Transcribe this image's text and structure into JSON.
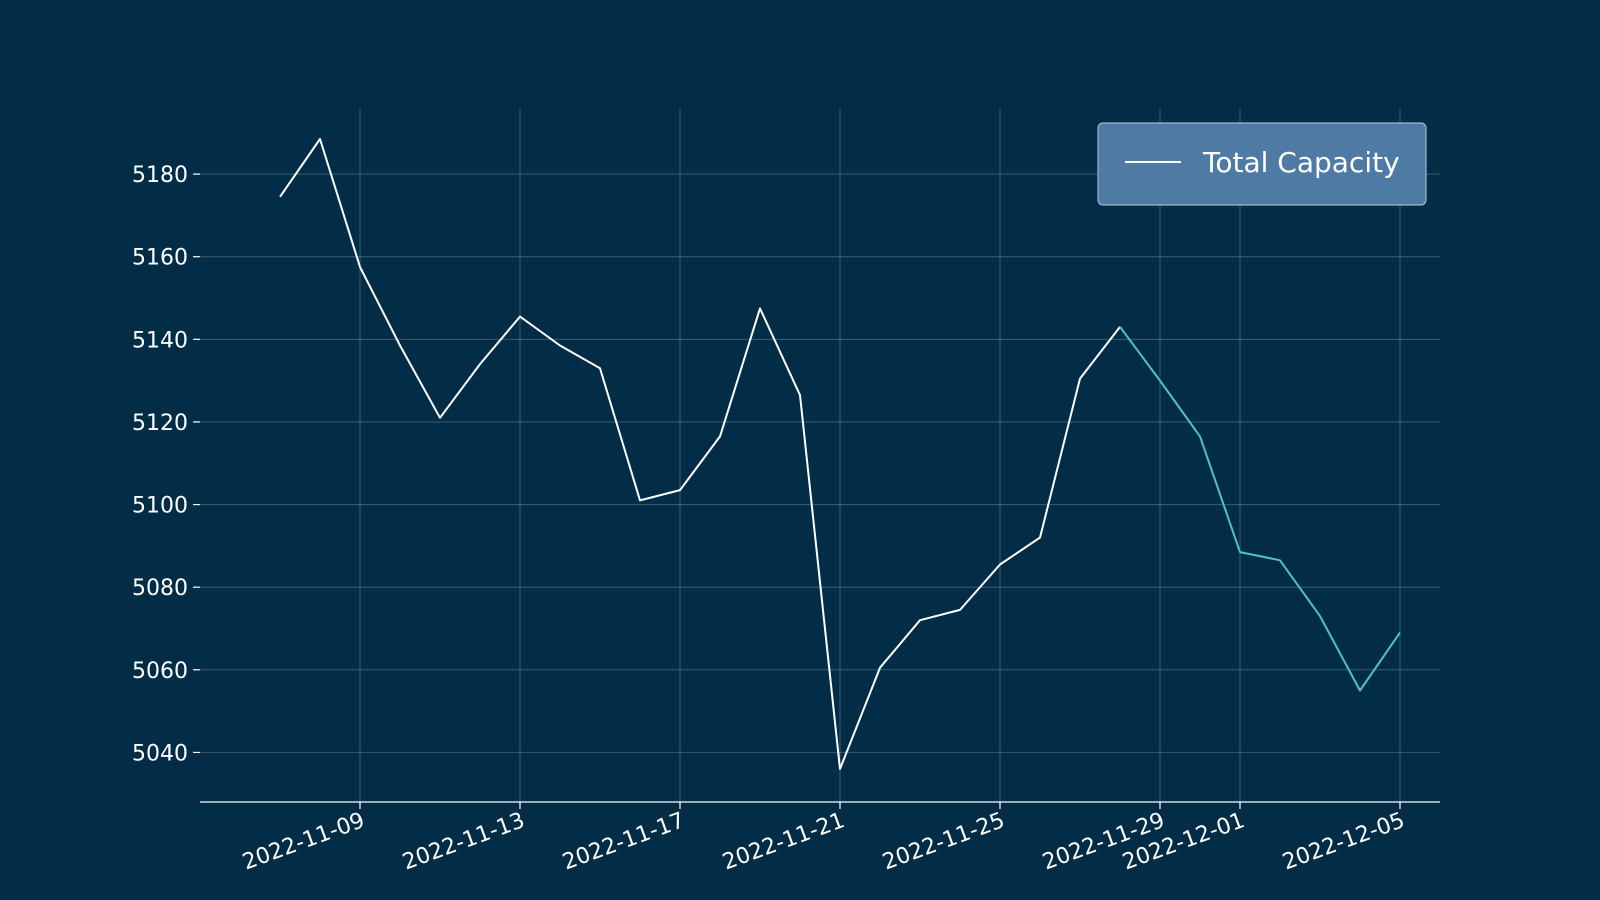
{
  "chart_data": {
    "type": "line",
    "xlabel": "",
    "ylabel": "",
    "x_range": [
      "2022-11-05",
      "2022-12-06"
    ],
    "ylim": [
      5028,
      5196
    ],
    "x_ticks": [
      "2022-11-09",
      "2022-11-13",
      "2022-11-17",
      "2022-11-21",
      "2022-11-25",
      "2022-11-29",
      "2022-12-01",
      "2022-12-05"
    ],
    "y_ticks": [
      5040,
      5060,
      5080,
      5100,
      5120,
      5140,
      5160,
      5180
    ],
    "grid": true,
    "legend_position": "top-right",
    "series": [
      {
        "name": "Total Capacity",
        "color": "#ffffff",
        "highlight_color": "#4fc3c3",
        "highlight_from": "2022-11-28",
        "points": [
          {
            "x": "2022-11-07",
            "y": 5174.5
          },
          {
            "x": "2022-11-08",
            "y": 5188.5
          },
          {
            "x": "2022-11-09",
            "y": 5157.5
          },
          {
            "x": "2022-11-10",
            "y": 5138.5
          },
          {
            "x": "2022-11-11",
            "y": 5121
          },
          {
            "x": "2022-11-12",
            "y": 5134
          },
          {
            "x": "2022-11-13",
            "y": 5145.5
          },
          {
            "x": "2022-11-14",
            "y": 5138.5
          },
          {
            "x": "2022-11-15",
            "y": 5133
          },
          {
            "x": "2022-11-16",
            "y": 5101
          },
          {
            "x": "2022-11-17",
            "y": 5103.5
          },
          {
            "x": "2022-11-18",
            "y": 5116.5
          },
          {
            "x": "2022-11-19",
            "y": 5147.5
          },
          {
            "x": "2022-11-20",
            "y": 5126.5
          },
          {
            "x": "2022-11-21",
            "y": 5036
          },
          {
            "x": "2022-11-22",
            "y": 5060.5
          },
          {
            "x": "2022-11-23",
            "y": 5072
          },
          {
            "x": "2022-11-24",
            "y": 5074.5
          },
          {
            "x": "2022-11-25",
            "y": 5085.5
          },
          {
            "x": "2022-11-26",
            "y": 5092
          },
          {
            "x": "2022-11-27",
            "y": 5130.5
          },
          {
            "x": "2022-11-28",
            "y": 5143
          },
          {
            "x": "2022-11-29",
            "y": 5130
          },
          {
            "x": "2022-11-30",
            "y": 5116.5
          },
          {
            "x": "2022-12-01",
            "y": 5088.5
          },
          {
            "x": "2022-12-02",
            "y": 5086.5
          },
          {
            "x": "2022-12-03",
            "y": 5073
          },
          {
            "x": "2022-12-04",
            "y": 5055
          },
          {
            "x": "2022-12-05",
            "y": 5069
          }
        ]
      }
    ],
    "colors": {
      "background": "#032d47",
      "legend_fill": "#4e7aa3",
      "text": "#ffffff"
    }
  }
}
